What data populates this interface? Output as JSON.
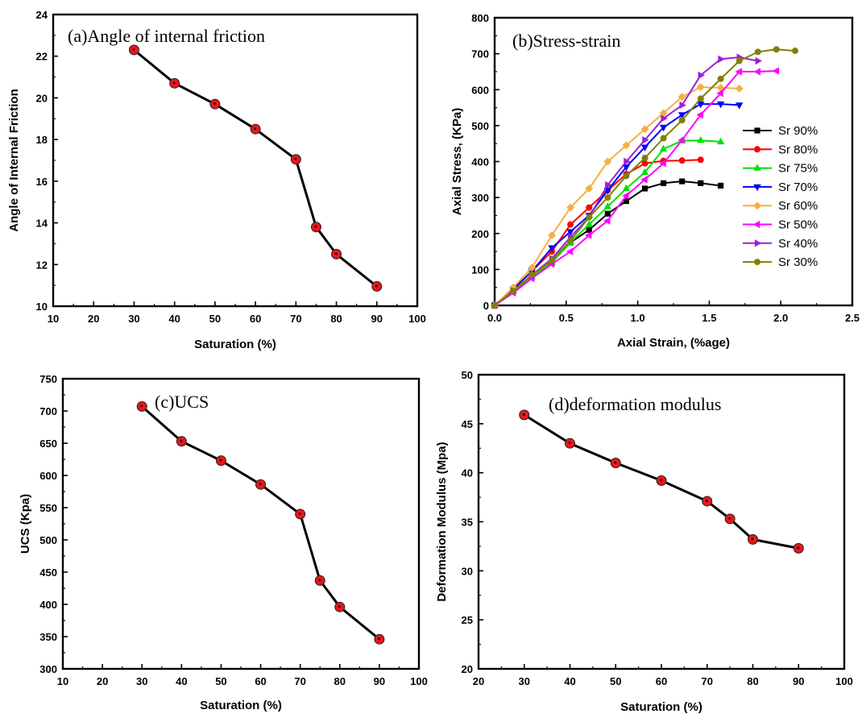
{
  "chart_data": [
    {
      "id": "a",
      "type": "line",
      "title": "(a)Angle of internal friction",
      "xlabel": "Saturation (%)",
      "ylabel": "Angle of Internal Friction",
      "xlim": [
        10,
        100
      ],
      "ylim": [
        10,
        24
      ],
      "xticks": [
        10,
        20,
        30,
        40,
        50,
        60,
        70,
        80,
        90,
        100
      ],
      "yticks": [
        10,
        12,
        14,
        16,
        18,
        20,
        22,
        24
      ],
      "series": [
        {
          "x": [
            30,
            40,
            50,
            60,
            70,
            75,
            80,
            90
          ],
          "y": [
            22.3,
            20.7,
            19.7,
            18.5,
            17.05,
            13.8,
            12.5,
            10.95
          ],
          "color": "#000000",
          "marker_color": "#e8161b"
        }
      ]
    },
    {
      "id": "b",
      "type": "line",
      "title": "(b)Stress-strain",
      "xlabel": "Axial Strain, (%age)",
      "ylabel": "Axial Stress, (KPa)",
      "xlim": [
        0,
        2.5
      ],
      "ylim": [
        0,
        800
      ],
      "xticks": [
        "0.0",
        "0.5",
        "1.0",
        "1.5",
        "2.0",
        "2.5"
      ],
      "yticks": [
        0,
        100,
        200,
        300,
        400,
        500,
        600,
        700,
        800
      ],
      "legend_position": "right",
      "series": [
        {
          "name": "Sr 90%",
          "color": "#000000",
          "marker": "square",
          "x": [
            0,
            0.13,
            0.26,
            0.4,
            0.53,
            0.66,
            0.79,
            0.92,
            1.05,
            1.18,
            1.31,
            1.44,
            1.58
          ],
          "y": [
            0,
            40,
            80,
            120,
            175,
            210,
            255,
            290,
            325,
            340,
            345,
            340,
            333
          ]
        },
        {
          "name": "Sr 80%",
          "color": "#ff0000",
          "marker": "circle",
          "x": [
            0,
            0.13,
            0.26,
            0.4,
            0.53,
            0.66,
            0.79,
            0.92,
            1.05,
            1.18,
            1.31,
            1.44
          ],
          "y": [
            0,
            45,
            95,
            150,
            225,
            272,
            320,
            365,
            395,
            402,
            403,
            405
          ]
        },
        {
          "name": "Sr 75%",
          "color": "#00e000",
          "marker": "triangle-up",
          "x": [
            0,
            0.13,
            0.26,
            0.4,
            0.53,
            0.66,
            0.79,
            0.92,
            1.05,
            1.18,
            1.31,
            1.44,
            1.58
          ],
          "y": [
            0,
            40,
            80,
            120,
            175,
            225,
            275,
            325,
            370,
            435,
            458,
            459,
            455
          ]
        },
        {
          "name": "Sr 70%",
          "color": "#0000ff",
          "marker": "triangle-down",
          "x": [
            0,
            0.13,
            0.26,
            0.4,
            0.53,
            0.66,
            0.79,
            0.92,
            1.05,
            1.18,
            1.31,
            1.44,
            1.58,
            1.71
          ],
          "y": [
            0,
            45,
            95,
            160,
            205,
            250,
            320,
            385,
            440,
            495,
            530,
            560,
            560,
            557
          ]
        },
        {
          "name": "Sr 60%",
          "color": "#f5b041",
          "marker": "diamond",
          "x": [
            0,
            0.13,
            0.26,
            0.4,
            0.53,
            0.66,
            0.79,
            0.92,
            1.05,
            1.18,
            1.31,
            1.44,
            1.58,
            1.71
          ],
          "y": [
            0,
            50,
            105,
            195,
            272,
            325,
            400,
            445,
            490,
            535,
            580,
            607,
            605,
            603
          ]
        },
        {
          "name": "Sr 50%",
          "color": "#ff00ff",
          "marker": "triangle-left",
          "x": [
            0,
            0.13,
            0.26,
            0.4,
            0.53,
            0.66,
            0.79,
            0.92,
            1.05,
            1.18,
            1.31,
            1.44,
            1.58,
            1.71,
            1.84,
            1.97
          ],
          "y": [
            0,
            35,
            75,
            115,
            150,
            195,
            235,
            305,
            350,
            395,
            460,
            530,
            590,
            650,
            650,
            652
          ]
        },
        {
          "name": "Sr 40%",
          "color": "#9c1fd6",
          "marker": "triangle-right",
          "x": [
            0,
            0.13,
            0.26,
            0.4,
            0.53,
            0.66,
            0.79,
            0.92,
            1.05,
            1.18,
            1.31,
            1.44,
            1.58,
            1.71,
            1.84
          ],
          "y": [
            0,
            40,
            85,
            130,
            190,
            245,
            335,
            400,
            460,
            520,
            557,
            640,
            685,
            690,
            680
          ]
        },
        {
          "name": "Sr 30%",
          "color": "#808000",
          "marker": "circle",
          "x": [
            0,
            0.13,
            0.26,
            0.4,
            0.53,
            0.66,
            0.79,
            0.92,
            1.05,
            1.18,
            1.31,
            1.44,
            1.58,
            1.71,
            1.84,
            1.97,
            2.1
          ],
          "y": [
            0,
            40,
            85,
            125,
            180,
            245,
            300,
            360,
            410,
            465,
            515,
            575,
            630,
            680,
            705,
            712,
            708
          ]
        }
      ]
    },
    {
      "id": "c",
      "type": "line",
      "title": "(c)UCS",
      "xlabel": "Saturation (%)",
      "ylabel": "UCS (Kpa)",
      "xlim": [
        10,
        100
      ],
      "ylim": [
        300,
        750
      ],
      "xticks": [
        10,
        20,
        30,
        40,
        50,
        60,
        70,
        80,
        90,
        100
      ],
      "yticks": [
        300,
        350,
        400,
        450,
        500,
        550,
        600,
        650,
        700,
        750
      ],
      "series": [
        {
          "x": [
            30,
            40,
            50,
            60,
            70,
            75,
            80,
            90
          ],
          "y": [
            707,
            653,
            623,
            586,
            540,
            437,
            396,
            346
          ],
          "color": "#000000",
          "marker_color": "#e8161b"
        }
      ]
    },
    {
      "id": "d",
      "type": "line",
      "title": "(d)deformation modulus",
      "xlabel": "Saturation (%)",
      "ylabel": "Deformation Modulus (Mpa)",
      "xlim": [
        20,
        100
      ],
      "ylim": [
        20,
        50
      ],
      "xticks": [
        20,
        30,
        40,
        50,
        60,
        70,
        80,
        90,
        100
      ],
      "yticks": [
        20,
        25,
        30,
        35,
        40,
        45,
        50
      ],
      "series": [
        {
          "x": [
            30,
            40,
            50,
            60,
            70,
            75,
            80,
            90
          ],
          "y": [
            45.9,
            43.0,
            41.0,
            39.2,
            37.1,
            35.3,
            33.2,
            32.3
          ],
          "color": "#000000",
          "marker_color": "#e8161b"
        }
      ]
    }
  ]
}
